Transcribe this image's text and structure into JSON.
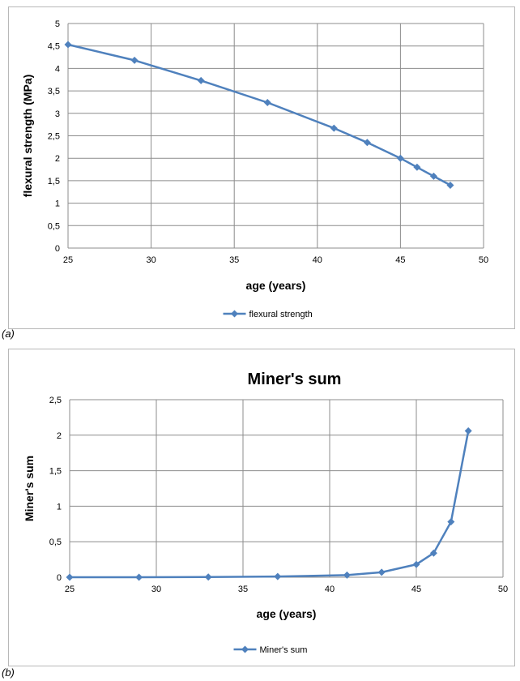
{
  "chart_data": [
    {
      "type": "line",
      "title": "",
      "xlabel": "age (years)",
      "ylabel": "flexural strength (MPa)",
      "xlim": [
        25,
        50
      ],
      "ylim": [
        0,
        5
      ],
      "xticks": [
        "25",
        "30",
        "35",
        "40",
        "45",
        "50"
      ],
      "yticks": [
        "0",
        "0,5",
        "1",
        "1,5",
        "2",
        "2,5",
        "3",
        "3,5",
        "4",
        "4,5",
        "5"
      ],
      "grid": true,
      "legend_position": "bottom",
      "series": [
        {
          "name": "flexural strength",
          "color": "#4f81bd",
          "x": [
            25,
            29,
            33,
            37,
            41,
            43,
            45,
            46,
            47,
            48
          ],
          "y": [
            4.53,
            4.18,
            3.73,
            3.24,
            2.67,
            2.35,
            2.0,
            1.8,
            1.6,
            1.4
          ]
        }
      ]
    },
    {
      "type": "line",
      "title": "Miner's sum",
      "xlabel": "age (years)",
      "ylabel": "Miner's sum",
      "xlim": [
        25,
        50
      ],
      "ylim": [
        0,
        2.5
      ],
      "xticks": [
        "25",
        "30",
        "35",
        "40",
        "45",
        "50"
      ],
      "yticks": [
        "0",
        "0,5",
        "1",
        "1,5",
        "2",
        "2,5"
      ],
      "grid": true,
      "legend_position": "bottom",
      "series": [
        {
          "name": "Miner's sum",
          "color": "#4f81bd",
          "x": [
            25,
            29,
            33,
            37,
            41,
            43,
            45,
            46,
            47,
            48
          ],
          "y": [
            0.0,
            0.0,
            0.003,
            0.01,
            0.03,
            0.07,
            0.18,
            0.34,
            0.78,
            2.06
          ]
        }
      ]
    }
  ],
  "captions": {
    "a": "(a)",
    "b": "(b)"
  }
}
